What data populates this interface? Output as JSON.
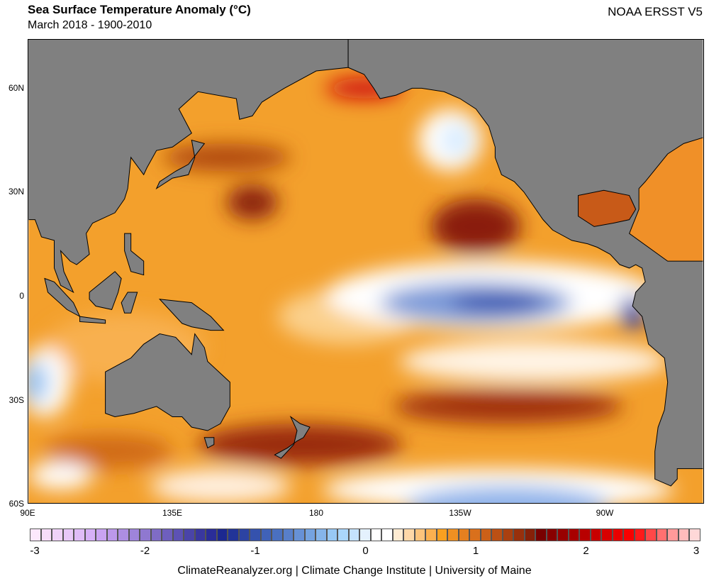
{
  "header": {
    "title": "Sea Surface Temperature Anomaly (°C)",
    "subtitle": "March 2018 - 1900-2010",
    "dataset": "NOAA ERSST V5"
  },
  "lat_ticks": [
    "60N",
    "30N",
    "0",
    "30S",
    "60S"
  ],
  "lon_ticks": [
    "90E",
    "135E",
    "180",
    "135W",
    "90W"
  ],
  "colorbar": {
    "labels": [
      "-3",
      "-2",
      "-1",
      "0",
      "1",
      "2",
      "3"
    ],
    "colors": [
      "#fce8fc",
      "#f6dcf8",
      "#efd2f8",
      "#e8c8f8",
      "#dfbcf7",
      "#d6b0f7",
      "#c9a3f2",
      "#bb98ea",
      "#ad8ee2",
      "#9e84da",
      "#8f78d0",
      "#7f6cc6",
      "#6e5fbd",
      "#5d52b4",
      "#4a44a8",
      "#39379f",
      "#2a2d98",
      "#1c2890",
      "#223498",
      "#2c43a2",
      "#3552ad",
      "#4062b8",
      "#4a70c0",
      "#587fca",
      "#6791d6",
      "#75a3e0",
      "#86b5ea",
      "#98c8f4",
      "#aad6fb",
      "#c4e2fc",
      "#e4f1fd",
      "#ffffff",
      "#ffffff",
      "#ffecd2",
      "#fed8a8",
      "#fdc47c",
      "#fbb050",
      "#f9a020",
      "#ef9022",
      "#e58020",
      "#d9701c",
      "#cb6018",
      "#bc5014",
      "#aa4010",
      "#98300c",
      "#862008",
      "#780000",
      "#880000",
      "#980000",
      "#a80000",
      "#b80000",
      "#c80000",
      "#d80000",
      "#e80000",
      "#f80000",
      "#ff1a1a",
      "#ff4848",
      "#ff7070",
      "#ff9a9a",
      "#ffbcbc",
      "#ffd8d8"
    ],
    "range": [
      -3,
      3
    ]
  },
  "footer": {
    "credit": "ClimateReanalyzer.org | Climate Change Institute | University of Maine"
  }
}
